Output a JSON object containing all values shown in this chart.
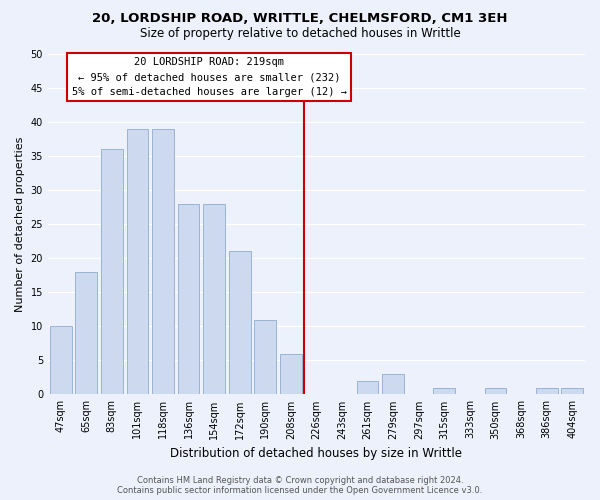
{
  "title_line1": "20, LORDSHIP ROAD, WRITTLE, CHELMSFORD, CM1 3EH",
  "title_line2": "Size of property relative to detached houses in Writtle",
  "xlabel": "Distribution of detached houses by size in Writtle",
  "ylabel": "Number of detached properties",
  "categories": [
    "47sqm",
    "65sqm",
    "83sqm",
    "101sqm",
    "118sqm",
    "136sqm",
    "154sqm",
    "172sqm",
    "190sqm",
    "208sqm",
    "226sqm",
    "243sqm",
    "261sqm",
    "279sqm",
    "297sqm",
    "315sqm",
    "333sqm",
    "350sqm",
    "368sqm",
    "386sqm",
    "404sqm"
  ],
  "values": [
    10,
    18,
    36,
    39,
    39,
    28,
    28,
    21,
    11,
    6,
    0,
    0,
    2,
    3,
    0,
    1,
    0,
    1,
    0,
    1,
    1
  ],
  "bar_color": "#ccd9ef",
  "bar_edge_color": "#9ab3d5",
  "vline_color": "#cc0000",
  "vline_index": 10,
  "annotation_title": "20 LORDSHIP ROAD: 219sqm",
  "annotation_line1": "← 95% of detached houses are smaller (232)",
  "annotation_line2": "5% of semi-detached houses are larger (12) →",
  "annotation_box_facecolor": "#ffffff",
  "annotation_box_edgecolor": "#cc0000",
  "ylim": [
    0,
    50
  ],
  "yticks": [
    0,
    5,
    10,
    15,
    20,
    25,
    30,
    35,
    40,
    45,
    50
  ],
  "footer_line1": "Contains HM Land Registry data © Crown copyright and database right 2024.",
  "footer_line2": "Contains public sector information licensed under the Open Government Licence v3.0.",
  "bg_color": "#edf1fb",
  "grid_color": "#ffffff",
  "title_fontsize": 9.5,
  "subtitle_fontsize": 8.5,
  "ylabel_fontsize": 8,
  "xlabel_fontsize": 8.5,
  "tick_fontsize": 7,
  "ann_title_fontsize": 8,
  "ann_body_fontsize": 7.5,
  "footer_fontsize": 6
}
